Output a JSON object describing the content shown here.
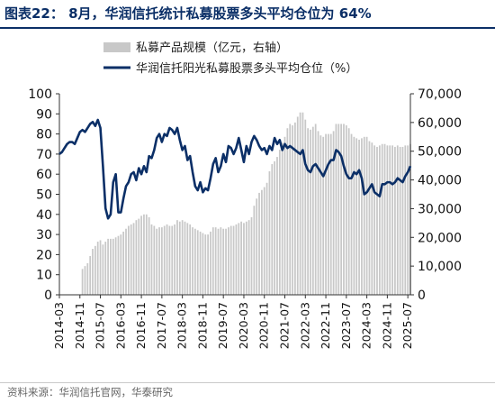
{
  "figure": {
    "title": "图表22：  8月，华润信托统计私募股票多头平均仓位为 64%",
    "source": "资料来源：华润信托官网，华泰研究"
  },
  "chart_data": {
    "type": "bar+line",
    "x_tick_labels": [
      "2014-03",
      "2014-11",
      "2015-07",
      "2016-03",
      "2016-11",
      "2017-07",
      "2018-03",
      "2018-11",
      "2019-07",
      "2020-03",
      "2020-11",
      "2021-07",
      "2022-03",
      "2022-11",
      "2023-07",
      "2024-03",
      "2024-11",
      "2025-07"
    ],
    "x_range": [
      "2014-03",
      "2025-08"
    ],
    "y_left": {
      "lim": [
        0,
        100
      ],
      "ticks": [
        0,
        10,
        20,
        30,
        40,
        50,
        60,
        70,
        80,
        90,
        100
      ]
    },
    "y_right": {
      "lim": [
        0,
        70000
      ],
      "ticks": [
        0,
        10000,
        20000,
        30000,
        40000,
        50000,
        60000,
        70000
      ],
      "tick_labels": [
        "0",
        "10,000",
        "20,000",
        "30,000",
        "40,000",
        "50,000",
        "60,000",
        "70,000"
      ]
    },
    "grid": false,
    "legend_position": "top-center",
    "bar_color": "#c8c8c8",
    "line_color": "#0b2f67",
    "series": [
      {
        "name": "私募产品规模（亿元，右轴）",
        "kind": "bar",
        "axis": "right",
        "points": [
          [
            "2014-12",
            9000
          ],
          [
            "2015-01",
            10000
          ],
          [
            "2015-02",
            11000
          ],
          [
            "2015-03",
            13500
          ],
          [
            "2015-04",
            16000
          ],
          [
            "2015-05",
            17000
          ],
          [
            "2015-06",
            18500
          ],
          [
            "2015-07",
            19000
          ],
          [
            "2015-08",
            17500
          ],
          [
            "2015-09",
            18500
          ],
          [
            "2015-10",
            19500
          ],
          [
            "2015-11",
            19500
          ],
          [
            "2015-12",
            19500
          ],
          [
            "2016-01",
            20000
          ],
          [
            "2016-02",
            20500
          ],
          [
            "2016-03",
            21000
          ],
          [
            "2016-04",
            22000
          ],
          [
            "2016-05",
            23000
          ],
          [
            "2016-06",
            24000
          ],
          [
            "2016-07",
            24500
          ],
          [
            "2016-08",
            25000
          ],
          [
            "2016-09",
            26000
          ],
          [
            "2016-10",
            26500
          ],
          [
            "2016-11",
            27500
          ],
          [
            "2016-12",
            28000
          ],
          [
            "2017-01",
            28000
          ],
          [
            "2017-02",
            27000
          ],
          [
            "2017-03",
            24500
          ],
          [
            "2017-04",
            24000
          ],
          [
            "2017-05",
            23000
          ],
          [
            "2017-06",
            23500
          ],
          [
            "2017-07",
            23500
          ],
          [
            "2017-08",
            24000
          ],
          [
            "2017-09",
            24500
          ],
          [
            "2017-10",
            24000
          ],
          [
            "2017-11",
            24000
          ],
          [
            "2017-12",
            24500
          ],
          [
            "2018-01",
            26000
          ],
          [
            "2018-02",
            25500
          ],
          [
            "2018-03",
            26000
          ],
          [
            "2018-04",
            25500
          ],
          [
            "2018-05",
            25000
          ],
          [
            "2018-06",
            24500
          ],
          [
            "2018-07",
            23500
          ],
          [
            "2018-08",
            23000
          ],
          [
            "2018-09",
            22500
          ],
          [
            "2018-10",
            22000
          ],
          [
            "2018-11",
            21500
          ],
          [
            "2018-12",
            21000
          ],
          [
            "2019-01",
            21000
          ],
          [
            "2019-02",
            22000
          ],
          [
            "2019-03",
            23500
          ],
          [
            "2019-04",
            23500
          ],
          [
            "2019-05",
            23000
          ],
          [
            "2019-06",
            23500
          ],
          [
            "2019-07",
            23000
          ],
          [
            "2019-08",
            23000
          ],
          [
            "2019-09",
            23500
          ],
          [
            "2019-10",
            24000
          ],
          [
            "2019-11",
            24000
          ],
          [
            "2019-12",
            24500
          ],
          [
            "2020-01",
            25000
          ],
          [
            "2020-02",
            25500
          ],
          [
            "2020-03",
            25000
          ],
          [
            "2020-04",
            25500
          ],
          [
            "2020-05",
            26000
          ],
          [
            "2020-06",
            27000
          ],
          [
            "2020-07",
            31000
          ],
          [
            "2020-08",
            33500
          ],
          [
            "2020-09",
            35500
          ],
          [
            "2020-10",
            36500
          ],
          [
            "2020-11",
            37500
          ],
          [
            "2020-12",
            39000
          ],
          [
            "2021-01",
            43000
          ],
          [
            "2021-02",
            45500
          ],
          [
            "2021-03",
            46500
          ],
          [
            "2021-04",
            48000
          ],
          [
            "2021-05",
            50500
          ],
          [
            "2021-06",
            53000
          ],
          [
            "2021-07",
            55000
          ],
          [
            "2021-08",
            58000
          ],
          [
            "2021-09",
            59500
          ],
          [
            "2021-10",
            59000
          ],
          [
            "2021-11",
            60000
          ],
          [
            "2021-12",
            62000
          ],
          [
            "2022-01",
            63500
          ],
          [
            "2022-02",
            63500
          ],
          [
            "2022-03",
            61000
          ],
          [
            "2022-04",
            58000
          ],
          [
            "2022-05",
            57500
          ],
          [
            "2022-06",
            58500
          ],
          [
            "2022-07",
            59500
          ],
          [
            "2022-08",
            57000
          ],
          [
            "2022-09",
            55500
          ],
          [
            "2022-10",
            55000
          ],
          [
            "2022-11",
            56000
          ],
          [
            "2022-12",
            56000
          ],
          [
            "2023-01",
            56000
          ],
          [
            "2023-02",
            57000
          ],
          [
            "2023-03",
            59500
          ],
          [
            "2023-04",
            59500
          ],
          [
            "2023-05",
            59500
          ],
          [
            "2023-06",
            59500
          ],
          [
            "2023-07",
            59000
          ],
          [
            "2023-08",
            58000
          ],
          [
            "2023-09",
            56000
          ],
          [
            "2023-10",
            55000
          ],
          [
            "2023-11",
            54500
          ],
          [
            "2023-12",
            54000
          ],
          [
            "2024-01",
            54500
          ],
          [
            "2024-02",
            55000
          ],
          [
            "2024-03",
            55000
          ],
          [
            "2024-04",
            53500
          ],
          [
            "2024-05",
            53000
          ],
          [
            "2024-06",
            52000
          ],
          [
            "2024-07",
            51500
          ],
          [
            "2024-08",
            52000
          ],
          [
            "2024-09",
            52500
          ],
          [
            "2024-10",
            52500
          ],
          [
            "2024-11",
            52000
          ],
          [
            "2024-12",
            52000
          ],
          [
            "2025-01",
            52000
          ],
          [
            "2025-02",
            51500
          ],
          [
            "2025-03",
            52000
          ],
          [
            "2025-04",
            51500
          ],
          [
            "2025-05",
            51500
          ],
          [
            "2025-06",
            52000
          ],
          [
            "2025-07",
            52000
          ],
          [
            "2025-08",
            52500
          ]
        ]
      },
      {
        "name": "华润信托阳光私募股票多头平均仓位（%）",
        "kind": "line",
        "axis": "left",
        "points": [
          [
            "2014-03",
            70
          ],
          [
            "2014-04",
            71
          ],
          [
            "2014-05",
            73
          ],
          [
            "2014-06",
            75
          ],
          [
            "2014-07",
            76
          ],
          [
            "2014-08",
            76
          ],
          [
            "2014-09",
            75
          ],
          [
            "2014-10",
            78
          ],
          [
            "2014-11",
            81
          ],
          [
            "2014-12",
            82
          ],
          [
            "2015-01",
            81
          ],
          [
            "2015-02",
            83
          ],
          [
            "2015-03",
            85
          ],
          [
            "2015-04",
            86
          ],
          [
            "2015-05",
            84
          ],
          [
            "2015-06",
            87
          ],
          [
            "2015-07",
            83
          ],
          [
            "2015-08",
            64
          ],
          [
            "2015-09",
            43
          ],
          [
            "2015-10",
            38
          ],
          [
            "2015-11",
            40
          ],
          [
            "2015-12",
            56
          ],
          [
            "2016-01",
            60
          ],
          [
            "2016-02",
            41
          ],
          [
            "2016-03",
            41
          ],
          [
            "2016-04",
            48
          ],
          [
            "2016-05",
            54
          ],
          [
            "2016-06",
            56
          ],
          [
            "2016-07",
            60
          ],
          [
            "2016-08",
            61
          ],
          [
            "2016-09",
            57
          ],
          [
            "2016-10",
            63
          ],
          [
            "2016-11",
            60
          ],
          [
            "2016-12",
            64
          ],
          [
            "2017-01",
            61
          ],
          [
            "2017-02",
            69
          ],
          [
            "2017-03",
            68
          ],
          [
            "2017-04",
            72
          ],
          [
            "2017-05",
            78
          ],
          [
            "2017-06",
            80
          ],
          [
            "2017-07",
            76
          ],
          [
            "2017-08",
            80
          ],
          [
            "2017-09",
            79
          ],
          [
            "2017-10",
            83
          ],
          [
            "2017-11",
            82
          ],
          [
            "2017-12",
            80
          ],
          [
            "2018-01",
            83
          ],
          [
            "2018-02",
            77
          ],
          [
            "2018-03",
            72
          ],
          [
            "2018-04",
            74
          ],
          [
            "2018-05",
            67
          ],
          [
            "2018-06",
            69
          ],
          [
            "2018-07",
            61
          ],
          [
            "2018-08",
            54
          ],
          [
            "2018-09",
            52
          ],
          [
            "2018-10",
            56
          ],
          [
            "2018-11",
            51
          ],
          [
            "2018-12",
            53
          ],
          [
            "2019-01",
            52
          ],
          [
            "2019-02",
            58
          ],
          [
            "2019-03",
            65
          ],
          [
            "2019-04",
            68
          ],
          [
            "2019-05",
            61
          ],
          [
            "2019-06",
            64
          ],
          [
            "2019-07",
            70
          ],
          [
            "2019-08",
            66
          ],
          [
            "2019-09",
            74
          ],
          [
            "2019-10",
            73
          ],
          [
            "2019-11",
            70
          ],
          [
            "2019-12",
            73
          ],
          [
            "2020-01",
            78
          ],
          [
            "2020-02",
            72
          ],
          [
            "2020-03",
            66
          ],
          [
            "2020-04",
            74
          ],
          [
            "2020-05",
            70
          ],
          [
            "2020-06",
            76
          ],
          [
            "2020-07",
            79
          ],
          [
            "2020-08",
            77
          ],
          [
            "2020-09",
            74
          ],
          [
            "2020-10",
            72
          ],
          [
            "2020-11",
            73
          ],
          [
            "2020-12",
            70
          ],
          [
            "2021-01",
            74
          ],
          [
            "2021-02",
            72
          ],
          [
            "2021-03",
            78
          ],
          [
            "2021-04",
            75
          ],
          [
            "2021-05",
            77
          ],
          [
            "2021-06",
            72
          ],
          [
            "2021-07",
            75
          ],
          [
            "2021-08",
            73
          ],
          [
            "2021-09",
            74
          ],
          [
            "2021-10",
            73
          ],
          [
            "2021-11",
            72
          ],
          [
            "2021-12",
            71
          ],
          [
            "2022-01",
            70
          ],
          [
            "2022-02",
            72
          ],
          [
            "2022-03",
            65
          ],
          [
            "2022-04",
            62
          ],
          [
            "2022-05",
            61
          ],
          [
            "2022-06",
            64
          ],
          [
            "2022-07",
            65
          ],
          [
            "2022-08",
            63
          ],
          [
            "2022-09",
            61
          ],
          [
            "2022-10",
            59
          ],
          [
            "2022-11",
            62
          ],
          [
            "2022-12",
            65
          ],
          [
            "2023-01",
            67
          ],
          [
            "2023-02",
            67
          ],
          [
            "2023-03",
            72
          ],
          [
            "2023-04",
            71
          ],
          [
            "2023-05",
            69
          ],
          [
            "2023-06",
            64
          ],
          [
            "2023-07",
            60
          ],
          [
            "2023-08",
            58
          ],
          [
            "2023-09",
            58
          ],
          [
            "2023-10",
            61
          ],
          [
            "2023-11",
            60
          ],
          [
            "2023-12",
            62
          ],
          [
            "2024-01",
            58
          ],
          [
            "2024-02",
            50
          ],
          [
            "2024-03",
            51
          ],
          [
            "2024-04",
            53
          ],
          [
            "2024-05",
            55
          ],
          [
            "2024-06",
            51
          ],
          [
            "2024-07",
            50
          ],
          [
            "2024-08",
            49
          ],
          [
            "2024-09",
            55
          ],
          [
            "2024-10",
            55
          ],
          [
            "2024-11",
            56
          ],
          [
            "2024-12",
            56
          ],
          [
            "2025-01",
            55
          ],
          [
            "2025-02",
            56
          ],
          [
            "2025-03",
            58
          ],
          [
            "2025-04",
            57
          ],
          [
            "2025-05",
            56
          ],
          [
            "2025-06",
            59
          ],
          [
            "2025-07",
            61
          ],
          [
            "2025-08",
            64
          ]
        ]
      }
    ]
  }
}
